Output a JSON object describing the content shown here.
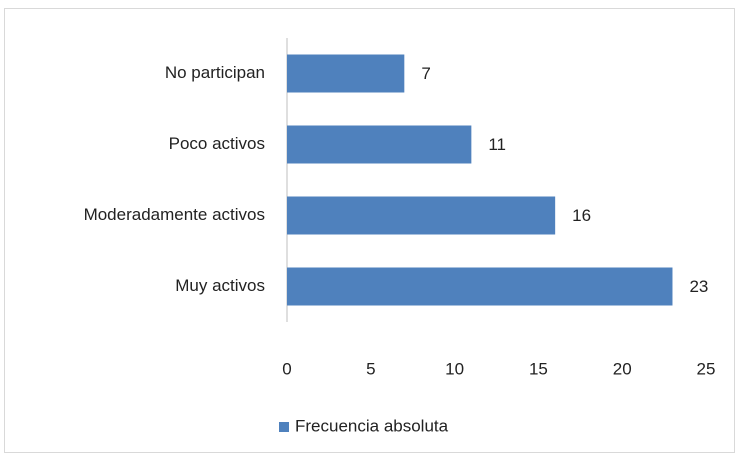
{
  "chart_data": {
    "type": "bar",
    "orientation": "horizontal",
    "categories": [
      "No participan",
      "Poco activos",
      "Moderadamente activos",
      "Muy activos"
    ],
    "series": [
      {
        "name": "Frecuencia absoluta",
        "color": "#4f81bd",
        "values": [
          7,
          11,
          16,
          23
        ]
      }
    ],
    "xlim": [
      0,
      25
    ],
    "xticks": [
      0,
      5,
      10,
      15,
      20,
      25
    ],
    "grid": false,
    "legend": "bottom"
  }
}
